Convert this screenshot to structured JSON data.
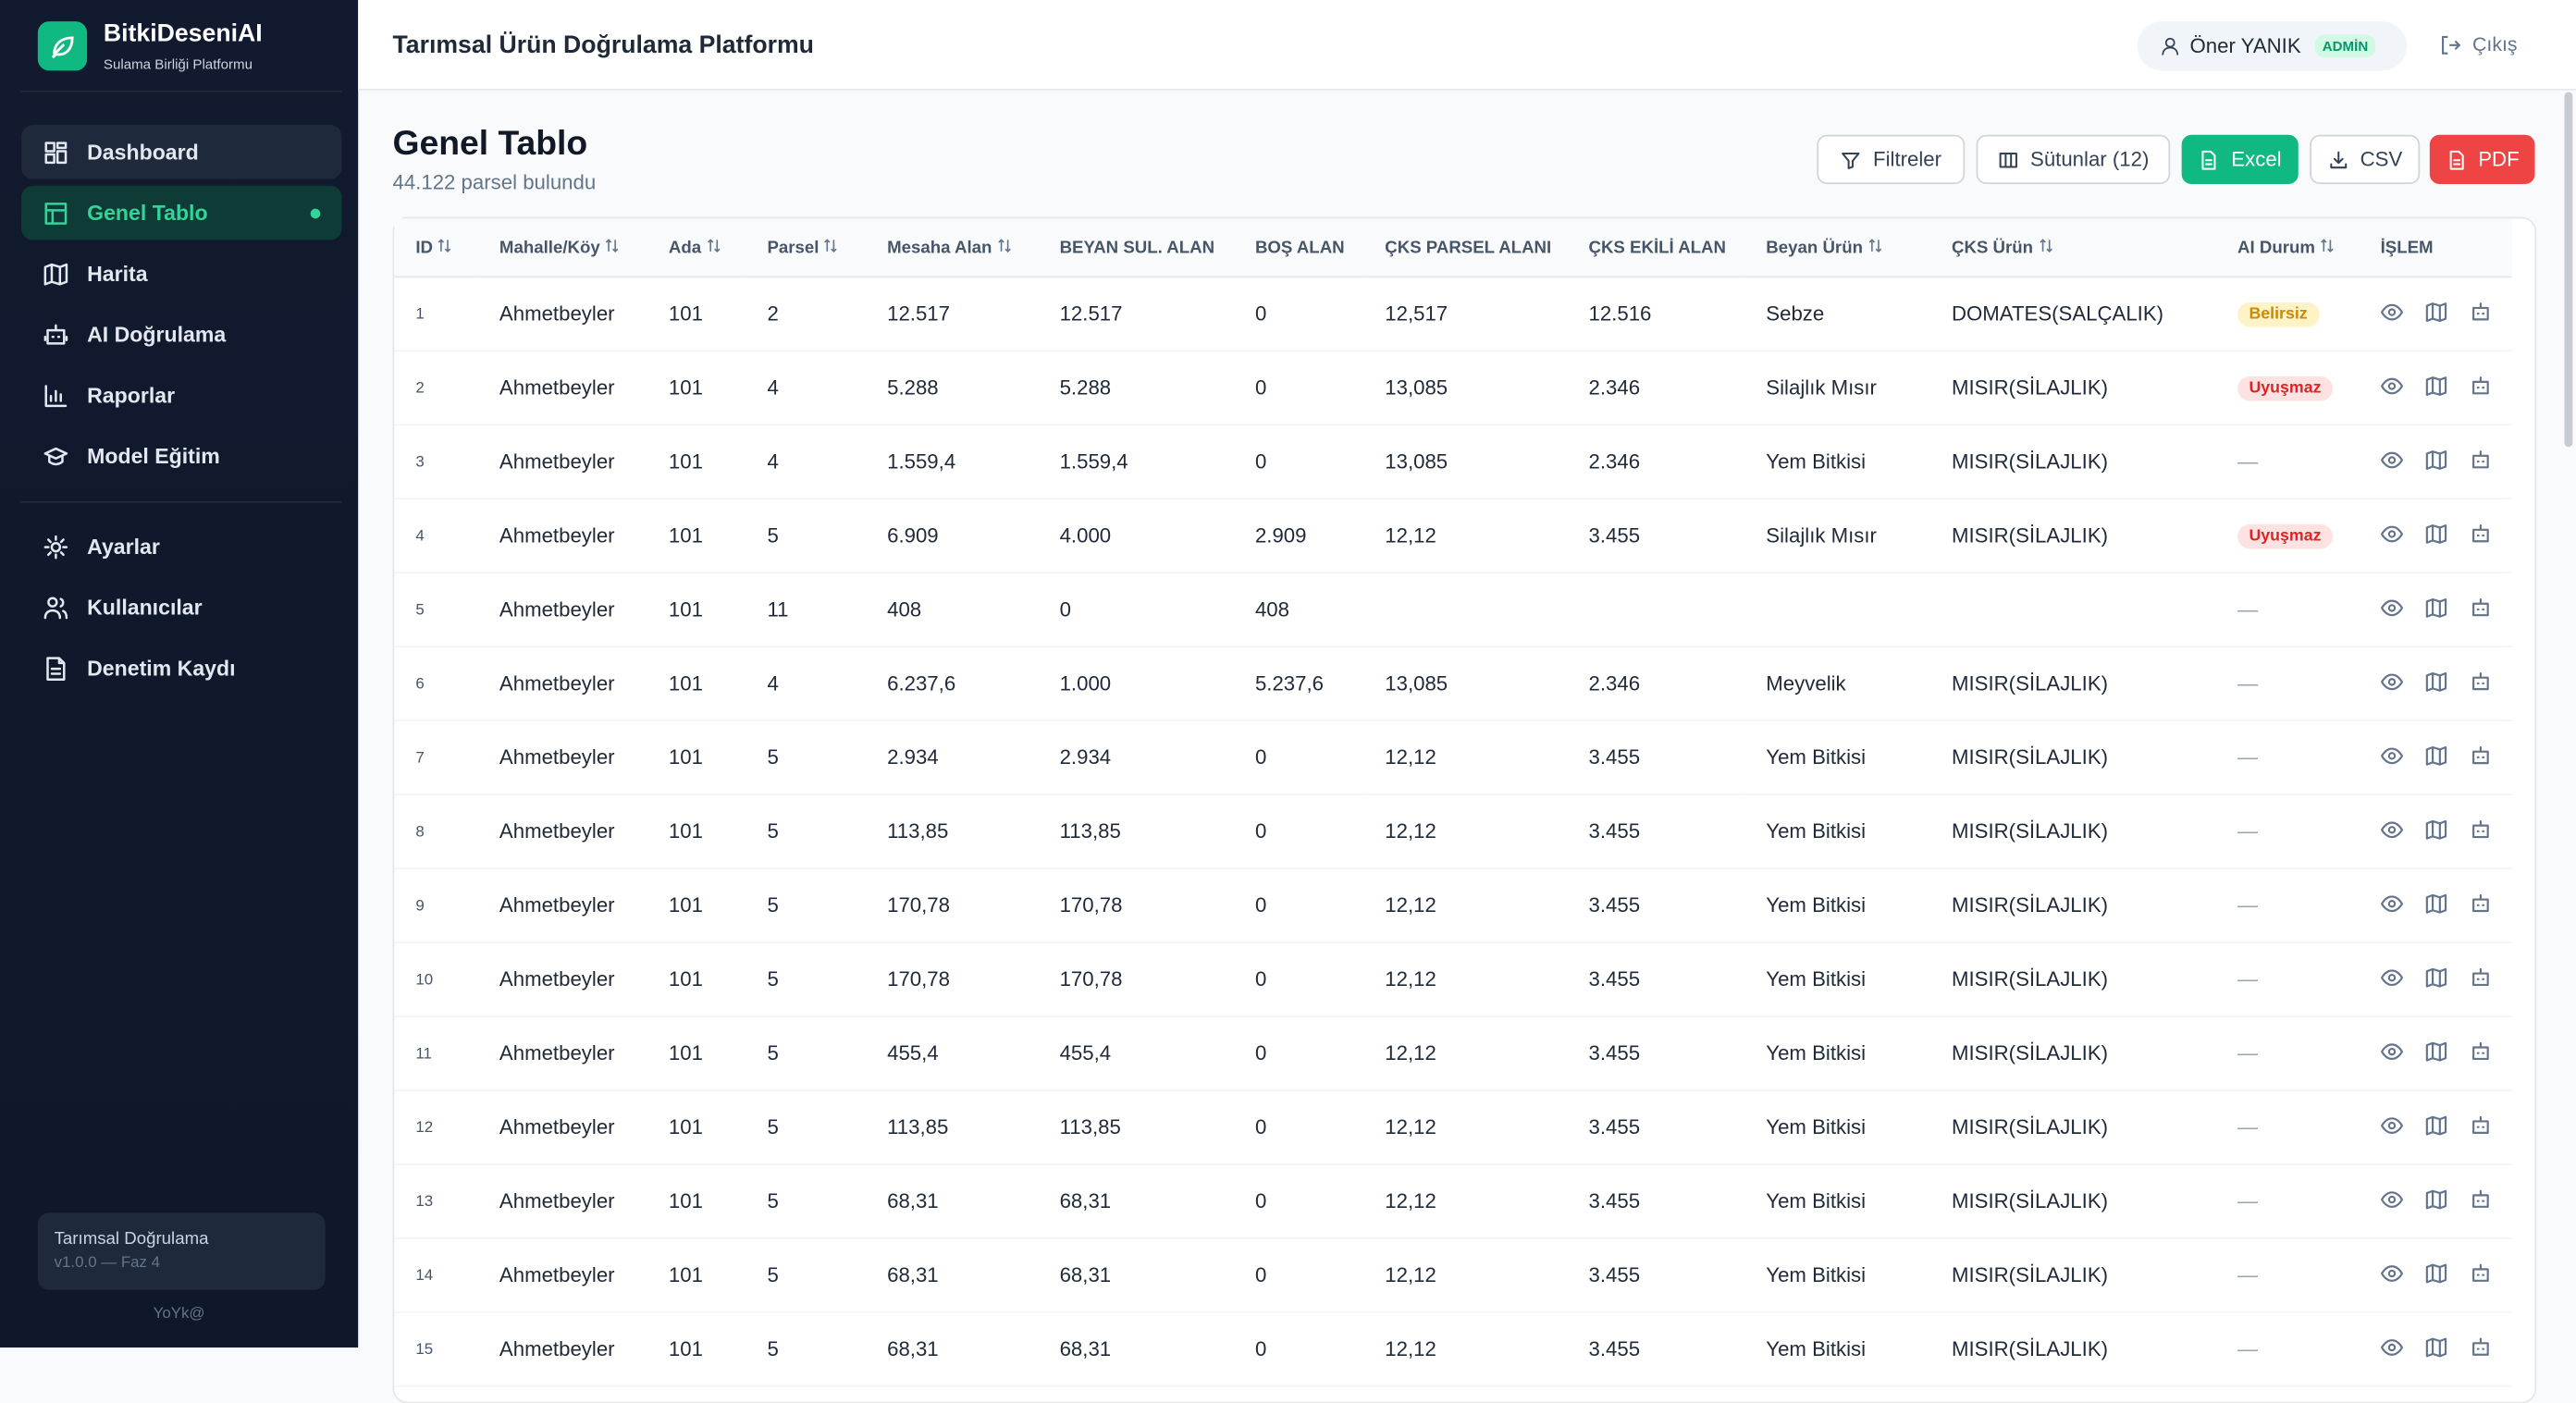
{
  "sidebar": {
    "brand": "BitkiDeseniAI",
    "subtitle": "Sulama Birliği Platformu",
    "nav": [
      "Dashboard",
      "Genel Tablo",
      "Harita",
      "AI Doğrulama",
      "Raporlar",
      "Model Eğitim"
    ],
    "nav2": [
      "Ayarlar",
      "Kullanıcılar",
      "Denetim Kaydı"
    ],
    "footer": {
      "title": "Tarımsal Doğrulama",
      "version": "v1.0.0 — Faz 4",
      "credit": "YoYk@"
    }
  },
  "header": {
    "title": "Tarımsal Ürün Doğrulama Platformu",
    "user": "Öner YANIK",
    "role": "ADMİN",
    "logout": "Çıkış"
  },
  "page": {
    "title": "Genel Tablo",
    "count": "44.122 parsel bulundu",
    "buttons": [
      "Filtreler",
      "Sütunlar (12)",
      "Excel",
      "CSV",
      "PDF"
    ]
  },
  "table": {
    "columns": [
      {
        "label": "ID",
        "sortable": true
      },
      {
        "label": "Mahalle/Köy",
        "sortable": true
      },
      {
        "label": "Ada",
        "sortable": true
      },
      {
        "label": "Parsel",
        "sortable": true
      },
      {
        "label": "Mesaha Alan",
        "sortable": true
      },
      {
        "label": "BEYAN SUL. ALAN",
        "sortable": false
      },
      {
        "label": "BOŞ ALAN",
        "sortable": false
      },
      {
        "label": "ÇKS PARSEL ALANI",
        "sortable": false
      },
      {
        "label": "ÇKS EKİLİ ALAN",
        "sortable": false
      },
      {
        "label": "Beyan Ürün",
        "sortable": true
      },
      {
        "label": "ÇKS Ürün",
        "sortable": true
      },
      {
        "label": "AI Durum",
        "sortable": true
      },
      {
        "label": "İŞLEM",
        "sortable": false
      }
    ],
    "rows": [
      [
        1,
        "Ahmetbeyler",
        101,
        2,
        "12.517",
        "12.517",
        "0",
        "12,517",
        "12.516",
        "Sebze",
        "DOMATES(SALÇALIK)",
        {
          "text": "Belirsiz",
          "color": "#ca8a04",
          "bg": "#fef3c7"
        }
      ],
      [
        2,
        "Ahmetbeyler",
        101,
        4,
        "5.288",
        "5.288",
        "0",
        "13,085",
        "2.346",
        "Silajlık Mısır",
        "MISIR(SİLAJLIK)",
        {
          "text": "Uyuşmaz",
          "color": "#dc2626",
          "bg": "#fee2e2"
        }
      ],
      [
        3,
        "Ahmetbeyler",
        101,
        4,
        "1.559,4",
        "1.559,4",
        "0",
        "13,085",
        "2.346",
        "Yem Bitkisi",
        "MISIR(SİLAJLIK)",
        "—"
      ],
      [
        4,
        "Ahmetbeyler",
        101,
        5,
        "6.909",
        "4.000",
        "2.909",
        "12,12",
        "3.455",
        "Silajlık Mısır",
        "MISIR(SİLAJLIK)",
        {
          "text": "Uyuşmaz",
          "color": "#dc2626",
          "bg": "#fee2e2"
        }
      ],
      [
        5,
        "Ahmetbeyler",
        101,
        11,
        "408",
        "0",
        "408",
        null,
        null,
        null,
        null,
        "—"
      ],
      [
        6,
        "Ahmetbeyler",
        101,
        4,
        "6.237,6",
        "1.000",
        "5.237,6",
        "13,085",
        "2.346",
        "Meyvelik",
        "MISIR(SİLAJLIK)",
        "—"
      ],
      [
        7,
        "Ahmetbeyler",
        101,
        5,
        "2.934",
        "2.934",
        "0",
        "12,12",
        "3.455",
        "Yem Bitkisi",
        "MISIR(SİLAJLIK)",
        "—"
      ],
      [
        8,
        "Ahmetbeyler",
        101,
        5,
        "113,85",
        "113,85",
        "0",
        "12,12",
        "3.455",
        "Yem Bitkisi",
        "MISIR(SİLAJLIK)",
        "—"
      ],
      [
        9,
        "Ahmetbeyler",
        101,
        5,
        "170,78",
        "170,78",
        "0",
        "12,12",
        "3.455",
        "Yem Bitkisi",
        "MISIR(SİLAJLIK)",
        "—"
      ],
      [
        10,
        "Ahmetbeyler",
        101,
        5,
        "170,78",
        "170,78",
        "0",
        "12,12",
        "3.455",
        "Yem Bitkisi",
        "MISIR(SİLAJLIK)",
        "—"
      ],
      [
        11,
        "Ahmetbeyler",
        101,
        5,
        "455,4",
        "455,4",
        "0",
        "12,12",
        "3.455",
        "Yem Bitkisi",
        "MISIR(SİLAJLIK)",
        "—"
      ],
      [
        12,
        "Ahmetbeyler",
        101,
        5,
        "113,85",
        "113,85",
        "0",
        "12,12",
        "3.455",
        "Yem Bitkisi",
        "MISIR(SİLAJLIK)",
        "—"
      ],
      [
        13,
        "Ahmetbeyler",
        101,
        5,
        "68,31",
        "68,31",
        "0",
        "12,12",
        "3.455",
        "Yem Bitkisi",
        "MISIR(SİLAJLIK)",
        "—"
      ],
      [
        14,
        "Ahmetbeyler",
        101,
        5,
        "68,31",
        "68,31",
        "0",
        "12,12",
        "3.455",
        "Yem Bitkisi",
        "MISIR(SİLAJLIK)",
        "—"
      ],
      [
        15,
        "Ahmetbeyler",
        101,
        5,
        "68,31",
        "68,31",
        "0",
        "12,12",
        "3.455",
        "Yem Bitkisi",
        "MISIR(SİLAJLIK)",
        "—"
      ]
    ]
  }
}
